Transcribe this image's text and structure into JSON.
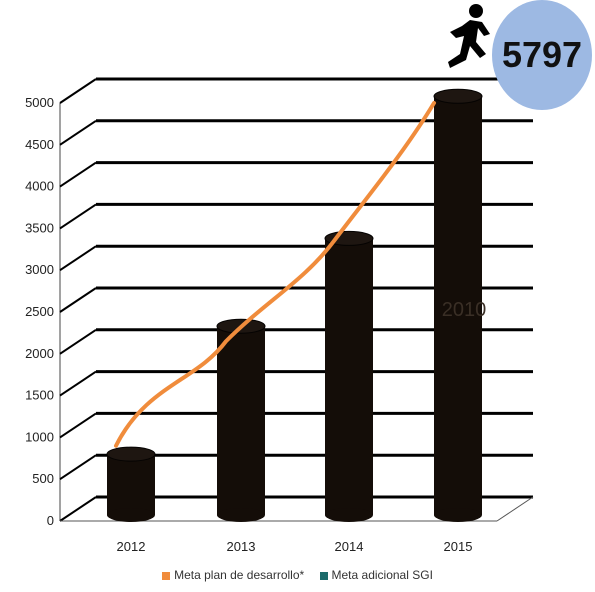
{
  "chart_data": {
    "type": "bar",
    "categories": [
      "2012",
      "2013",
      "2014",
      "2015"
    ],
    "values": [
      800,
      2330,
      3380,
      5080
    ],
    "ylim": [
      0,
      5000
    ],
    "yticks": [
      0,
      500,
      1000,
      1500,
      2000,
      2500,
      3000,
      3500,
      4000,
      4500,
      5000
    ],
    "series": [
      {
        "name": "Meta plan de desarrollo*",
        "type": "line",
        "color": "#f08c3c",
        "values": [
          900,
          2150,
          3350,
          5000
        ]
      },
      {
        "name": "Meta adicional SGI",
        "color": "#1b6b6b"
      }
    ],
    "bar_color": "#140d08",
    "grid": true,
    "legend": "bottom",
    "callout": "5797",
    "callout_icon": "runner-icon",
    "inner_label": "2010"
  }
}
